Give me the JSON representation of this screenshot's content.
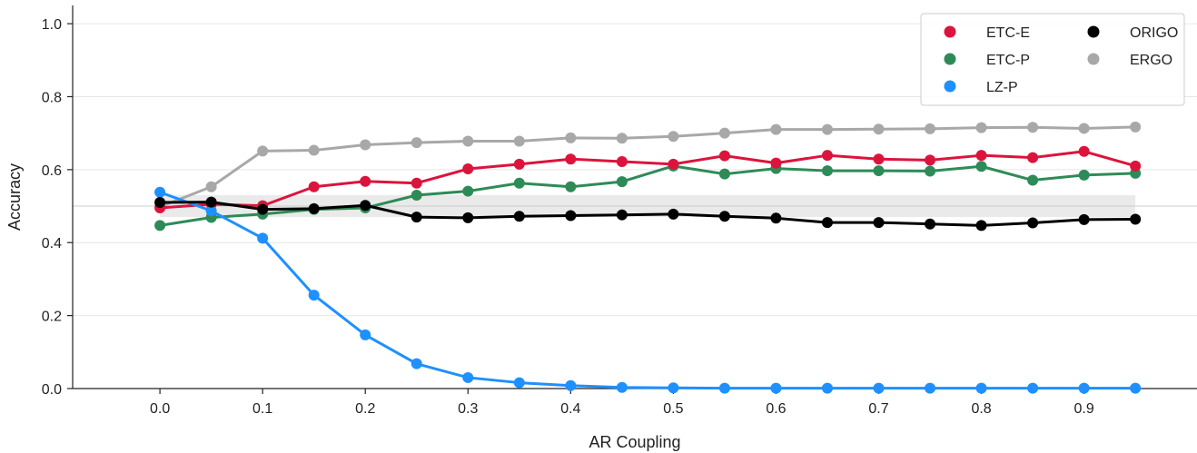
{
  "chart_data": {
    "type": "line",
    "xlabel": "AR Coupling",
    "ylabel": "Accuracy",
    "xlim": [
      -0.085,
      1.01
    ],
    "ylim": [
      0.0,
      1.05
    ],
    "xticks": [
      0.0,
      0.1,
      0.2,
      0.3,
      0.4,
      0.5,
      0.6,
      0.7,
      0.8,
      0.9
    ],
    "xtick_labels": [
      "0.0",
      "0.1",
      "0.2",
      "0.3",
      "0.4",
      "0.5",
      "0.6",
      "0.7",
      "0.8",
      "0.9"
    ],
    "yticks": [
      0.0,
      0.2,
      0.4,
      0.6,
      0.8,
      1.0
    ],
    "ytick_labels": [
      "0.0",
      "0.2",
      "0.4",
      "0.6",
      "0.8",
      "1.0"
    ],
    "grid": "horizontal",
    "legend_position": "top-right",
    "reference_line": 0.5,
    "confidence_band": [
      0.47,
      0.53
    ],
    "x": [
      0.0,
      0.05,
      0.1,
      0.15,
      0.2,
      0.25,
      0.3,
      0.35,
      0.4,
      0.45,
      0.5,
      0.55,
      0.6,
      0.65,
      0.7,
      0.75,
      0.8,
      0.85,
      0.9,
      0.95
    ],
    "series": [
      {
        "name": "ERGO",
        "color": "#a8a8a8",
        "values": [
          0.498,
          0.553,
          0.651,
          0.653,
          0.668,
          0.674,
          0.678,
          0.678,
          0.687,
          0.686,
          0.691,
          0.7,
          0.71,
          0.71,
          0.711,
          0.712,
          0.715,
          0.716,
          0.713,
          0.717
        ]
      },
      {
        "name": "ETC-P",
        "color": "#2e8b57",
        "values": [
          0.447,
          0.469,
          0.478,
          0.491,
          0.495,
          0.53,
          0.541,
          0.563,
          0.553,
          0.567,
          0.61,
          0.588,
          0.603,
          0.597,
          0.597,
          0.596,
          0.609,
          0.571,
          0.585,
          0.59
        ]
      },
      {
        "name": "ETC-E",
        "color": "#dc143c",
        "values": [
          0.495,
          0.505,
          0.501,
          0.553,
          0.568,
          0.563,
          0.602,
          0.615,
          0.629,
          0.622,
          0.615,
          0.638,
          0.618,
          0.639,
          0.629,
          0.626,
          0.639,
          0.633,
          0.65,
          0.61
        ]
      },
      {
        "name": "LZ-P",
        "color": "#1e90ff",
        "values": [
          0.538,
          0.487,
          0.412,
          0.256,
          0.147,
          0.068,
          0.03,
          0.016,
          0.008,
          0.003,
          0.002,
          0.001,
          0.001,
          0.001,
          0.001,
          0.001,
          0.001,
          0.001,
          0.001,
          0.001
        ]
      },
      {
        "name": "ORIGO",
        "color": "#000000",
        "values": [
          0.51,
          0.511,
          0.491,
          0.493,
          0.502,
          0.47,
          0.468,
          0.472,
          0.474,
          0.476,
          0.478,
          0.472,
          0.467,
          0.455,
          0.455,
          0.451,
          0.447,
          0.454,
          0.463,
          0.464
        ]
      }
    ],
    "legend": {
      "col1": [
        "ETC-E",
        "ETC-P",
        "LZ-P"
      ],
      "col2": [
        "ORIGO",
        "ERGO"
      ]
    }
  }
}
